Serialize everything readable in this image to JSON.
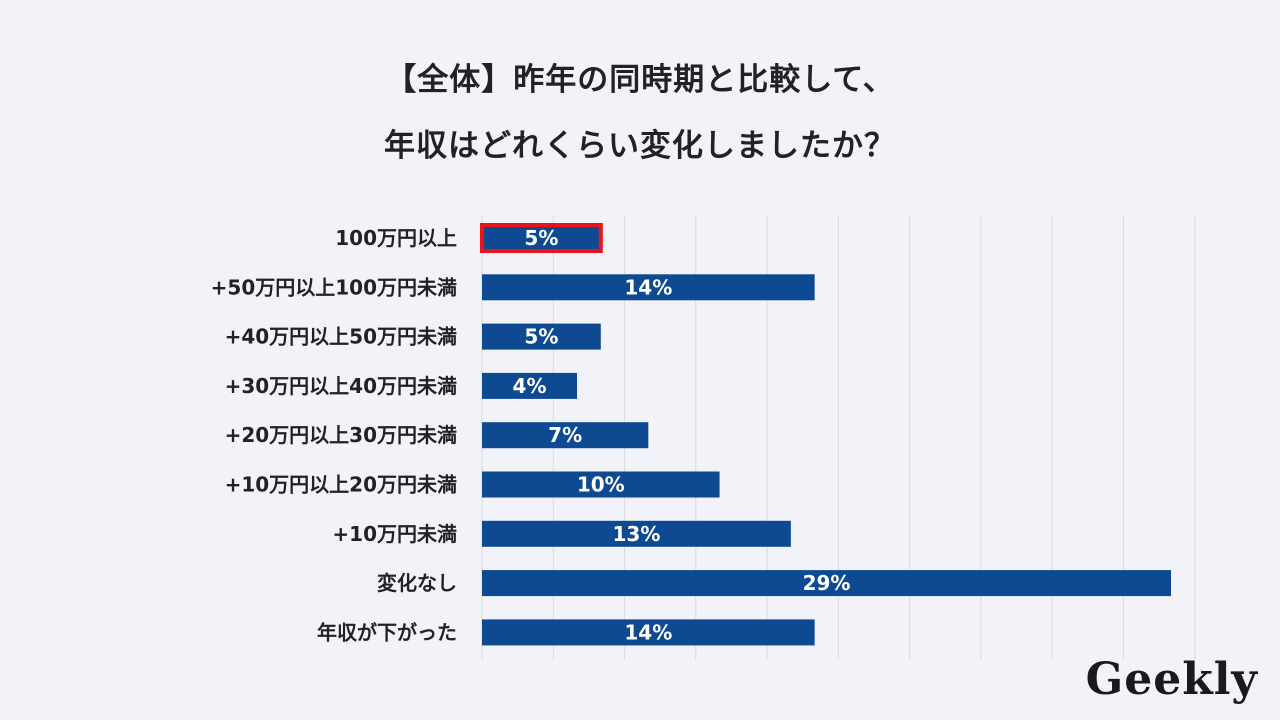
{
  "title_line1": "【全体】昨年の同時期と比較して、",
  "title_line2": "年収はどれくらい変化しましたか？",
  "logo": "Geekly",
  "colors": {
    "bar": "#0d4a92",
    "highlight": "#e8141c",
    "grid": "#d8dbe3",
    "label": "#222222",
    "value": "#ffffff",
    "background": "#f1f3f8"
  },
  "chart_data": {
    "type": "bar",
    "orientation": "horizontal",
    "categories": [
      "100万円以上",
      "+50万円以上100万円未満",
      "+40万円以上50万円未満",
      "+30万円以上40万円未満",
      "+20万円以上30万円未満",
      "+10万円以上20万円未満",
      "+10万円未満",
      "変化なし",
      "年収が下がった"
    ],
    "values": [
      5,
      14,
      5,
      4,
      7,
      10,
      13,
      29,
      14
    ],
    "labels": [
      "5%",
      "14%",
      "5%",
      "4%",
      "7%",
      "10%",
      "13%",
      "29%",
      "14%"
    ],
    "highlighted": [
      0
    ],
    "xlim": [
      0,
      30
    ],
    "grid": true
  }
}
